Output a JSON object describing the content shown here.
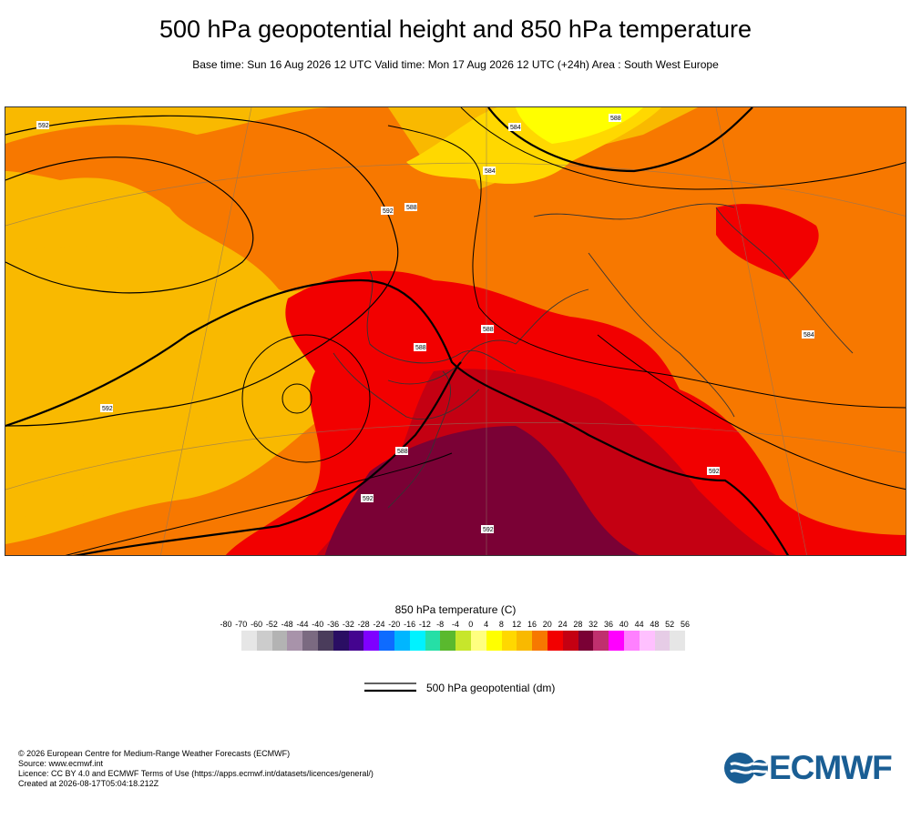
{
  "title": "500 hPa geopotential height and 850 hPa temperature",
  "subtitle": "Base time: Sun 16 Aug 2026 12 UTC Valid time: Mon 17 Aug 2026 12 UTC (+24h) Area : South West Europe",
  "map": {
    "contour_labels": [
      "592",
      "592",
      "588",
      "592",
      "588",
      "584",
      "588",
      "592",
      "592",
      "592",
      "584",
      "584",
      "588",
      "588"
    ],
    "temperature_colors": {
      "t16": "#f9b900",
      "t20": "#f77800",
      "t24": "#f20000",
      "t28": "#c40012",
      "t32": "#7a0135"
    }
  },
  "legend": {
    "title": "850 hPa temperature (C)",
    "ticks": [
      "-80",
      "-70",
      "-60",
      "-52",
      "-48",
      "-44",
      "-40",
      "-36",
      "-32",
      "-28",
      "-24",
      "-20",
      "-16",
      "-12",
      "-8",
      "-4",
      "0",
      "4",
      "8",
      "12",
      "16",
      "20",
      "24",
      "28",
      "32",
      "36",
      "40",
      "44",
      "48",
      "52",
      "56"
    ],
    "colors": [
      "#e6e6e6",
      "#cccccc",
      "#b3b3b3",
      "#a893aa",
      "#7b6a81",
      "#4a3c5b",
      "#2a0e63",
      "#44048f",
      "#7f00ff",
      "#0e6bff",
      "#00b6ff",
      "#00f2ff",
      "#26dfa6",
      "#5ab92e",
      "#c7e62b",
      "#ffff80",
      "#ffff00",
      "#ffd800",
      "#f9b900",
      "#f77800",
      "#f20000",
      "#c40012",
      "#7a0135",
      "#c0306e",
      "#ff00ff",
      "#ff80ff",
      "#ffc0ff",
      "#e6cce6",
      "#e6e6e6"
    ]
  },
  "geopotential_legend": {
    "label": "500 hPa geopotential (dm)"
  },
  "footer": {
    "line1": "© 2026 European Centre for Medium-Range Weather Forecasts (ECMWF)",
    "line2": "Source: www.ecmwf.int",
    "line3": "Licence: CC BY 4.0 and ECMWF Terms of Use (https://apps.ecmwf.int/datasets/licences/general/)",
    "line4": "Created at 2026-08-17T05:04:18.212Z"
  },
  "logo": {
    "text": "ECMWF",
    "color": "#1a5e94"
  }
}
